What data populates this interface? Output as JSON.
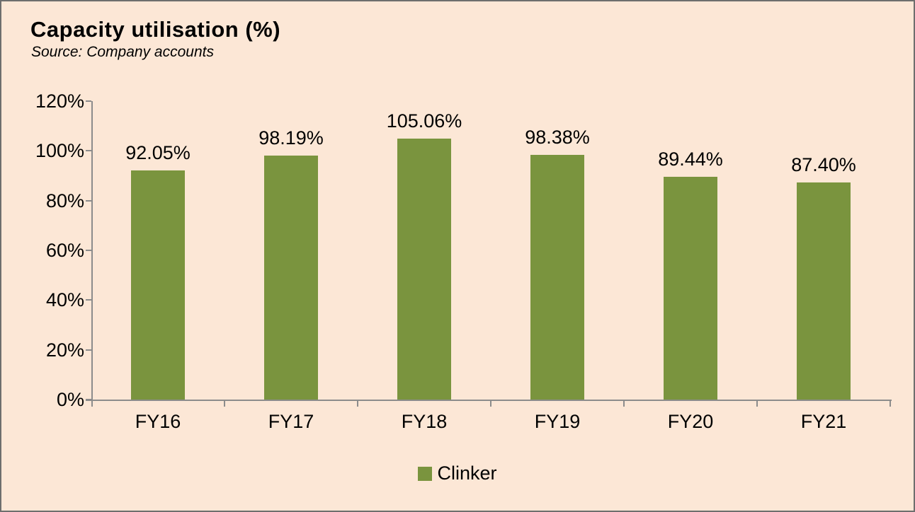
{
  "chart": {
    "title": "Capacity utilisation (%)",
    "source": "Source: Company accounts",
    "legend": [
      "Clinker"
    ]
  },
  "chart_data": {
    "type": "bar",
    "title": "Capacity utilisation (%)",
    "subtitle": "Source: Company accounts",
    "categories": [
      "FY16",
      "FY17",
      "FY18",
      "FY19",
      "FY20",
      "FY21"
    ],
    "series": [
      {
        "name": "Clinker",
        "values": [
          92.05,
          98.19,
          105.06,
          98.38,
          89.44,
          87.4
        ]
      }
    ],
    "data_labels": [
      "92.05%",
      "98.19%",
      "105.06%",
      "98.38%",
      "89.44%",
      "87.40%"
    ],
    "ylabel": "",
    "xlabel": "",
    "ylim": [
      0,
      120
    ],
    "ytick_step": 20,
    "ytick_labels": [
      "0%",
      "20%",
      "40%",
      "60%",
      "80%",
      "100%",
      "120%"
    ],
    "grid": false,
    "legend_position": "bottom",
    "colors": {
      "bar": "#7a943e",
      "background": "#fce7d6",
      "axis": "#8c8c8c",
      "text": "#000000",
      "frame_border": "#6e6e6e"
    }
  }
}
